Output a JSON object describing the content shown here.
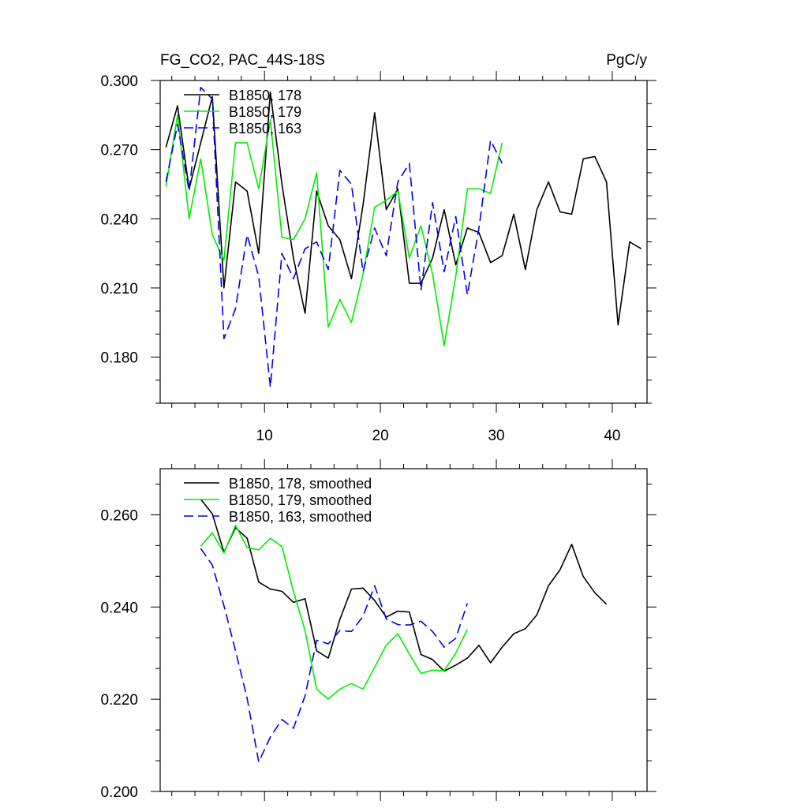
{
  "chart_data": [
    {
      "type": "line",
      "title": "FG_CO2, PAC_44S-18S",
      "units": "PgC/y",
      "xlim": [
        1,
        43
      ],
      "ylim": [
        0.16,
        0.3
      ],
      "xticks": [
        10,
        20,
        30,
        40
      ],
      "yticks": [
        0.18,
        0.21,
        0.24,
        0.27,
        0.3
      ],
      "ytick_labels": [
        "0.180",
        "0.210",
        "0.240",
        "0.270",
        "0.300"
      ],
      "legend_position": "top-left",
      "series": [
        {
          "name": "B1850, 178",
          "color": "#000000",
          "dash": "solid",
          "x": [
            1.5,
            2.5,
            3.5,
            4.5,
            5.5,
            6.5,
            7.5,
            8.5,
            9.5,
            10.5,
            11.5,
            12.5,
            13.5,
            14.5,
            15.5,
            16.5,
            17.5,
            18.5,
            19.5,
            20.5,
            21.5,
            22.5,
            23.5,
            24.5,
            25.5,
            26.5,
            27.5,
            28.5,
            29.5,
            30.5,
            31.5,
            32.5,
            33.5,
            34.5,
            35.5,
            36.5,
            37.5,
            38.5,
            39.5,
            40.5,
            41.5,
            42.5
          ],
          "y": [
            0.271,
            0.289,
            0.253,
            0.273,
            0.293,
            0.21,
            0.256,
            0.252,
            0.225,
            0.295,
            0.255,
            0.223,
            0.199,
            0.252,
            0.237,
            0.231,
            0.214,
            0.246,
            0.286,
            0.244,
            0.253,
            0.212,
            0.212,
            0.223,
            0.244,
            0.22,
            0.236,
            0.234,
            0.221,
            0.224,
            0.242,
            0.218,
            0.244,
            0.256,
            0.243,
            0.242,
            0.266,
            0.267,
            0.256,
            0.194,
            0.23,
            0.227
          ]
        },
        {
          "name": "B1850, 179",
          "color": "#00ee00",
          "dash": "solid",
          "x": [
            1.5,
            2.5,
            3.5,
            4.5,
            5.5,
            6.5,
            7.5,
            8.5,
            9.5,
            10.5,
            11.5,
            12.5,
            13.5,
            14.5,
            15.5,
            16.5,
            17.5,
            18.5,
            19.5,
            20.5,
            21.5,
            22.5,
            23.5,
            24.5,
            25.5,
            26.5,
            27.5,
            28.5,
            29.5,
            30.5
          ],
          "y": [
            0.254,
            0.285,
            0.24,
            0.266,
            0.233,
            0.222,
            0.273,
            0.273,
            0.253,
            0.283,
            0.232,
            0.231,
            0.24,
            0.26,
            0.193,
            0.205,
            0.195,
            0.216,
            0.245,
            0.248,
            0.252,
            0.223,
            0.237,
            0.216,
            0.185,
            0.215,
            0.253,
            0.253,
            0.251,
            0.273
          ]
        },
        {
          "name": "B1850, 163",
          "color": "#0000ee",
          "dash": "dashed",
          "x": [
            1.5,
            2.5,
            3.5,
            4.5,
            5.5,
            6.5,
            7.5,
            8.5,
            9.5,
            10.5,
            11.5,
            12.5,
            13.5,
            14.5,
            15.5,
            16.5,
            17.5,
            18.5,
            19.5,
            20.5,
            21.5,
            22.5,
            23.5,
            24.5,
            25.5,
            26.5,
            27.5,
            28.5,
            29.5,
            30.5
          ],
          "y": [
            0.256,
            0.281,
            0.252,
            0.297,
            0.292,
            0.188,
            0.201,
            0.233,
            0.215,
            0.167,
            0.225,
            0.214,
            0.227,
            0.23,
            0.218,
            0.261,
            0.255,
            0.217,
            0.236,
            0.224,
            0.256,
            0.264,
            0.209,
            0.247,
            0.217,
            0.241,
            0.207,
            0.236,
            0.274,
            0.264
          ]
        }
      ]
    },
    {
      "type": "line",
      "xlim": [
        1,
        43
      ],
      "ylim": [
        0.2,
        0.27
      ],
      "xticks": [
        10,
        20,
        30,
        40
      ],
      "yticks": [
        0.2,
        0.22,
        0.24,
        0.26
      ],
      "ytick_labels": [
        "0.200",
        "0.220",
        "0.240",
        "0.260"
      ],
      "legend_position": "top-left",
      "series": [
        {
          "name": "B1850, 178, smoothed",
          "color": "#000000",
          "dash": "solid",
          "x": [
            4.5,
            5.5,
            6.5,
            7.5,
            8.5,
            9.5,
            10.5,
            11.5,
            12.5,
            13.5,
            14.5,
            15.5,
            16.5,
            17.5,
            18.5,
            19.5,
            20.5,
            21.5,
            22.5,
            23.5,
            24.5,
            25.5,
            26.5,
            27.5,
            28.5,
            29.5,
            30.5,
            31.5,
            32.5,
            33.5,
            34.5,
            35.5,
            36.5,
            37.5,
            38.5,
            39.5
          ],
          "y": [
            0.2634,
            0.2602,
            0.2519,
            0.2572,
            0.2549,
            0.2454,
            0.2439,
            0.2434,
            0.241,
            0.2418,
            0.2305,
            0.2289,
            0.2373,
            0.2439,
            0.2441,
            0.2414,
            0.2378,
            0.2391,
            0.2389,
            0.2297,
            0.2286,
            0.2261,
            0.2274,
            0.2289,
            0.2317,
            0.2279,
            0.2313,
            0.2342,
            0.2353,
            0.2383,
            0.2446,
            0.2481,
            0.2536,
            0.2466,
            0.2431,
            0.2406
          ]
        },
        {
          "name": "B1850, 179, smoothed",
          "color": "#00ee00",
          "dash": "solid",
          "x": [
            4.5,
            5.5,
            6.5,
            7.5,
            8.5,
            9.5,
            10.5,
            11.5,
            12.5,
            13.5,
            14.5,
            15.5,
            16.5,
            17.5,
            18.5,
            19.5,
            20.5,
            21.5,
            22.5,
            23.5,
            24.5,
            25.5,
            26.5,
            27.5
          ],
          "y": [
            0.2532,
            0.2561,
            0.2517,
            0.2577,
            0.2529,
            0.2524,
            0.2549,
            0.2531,
            0.2434,
            0.2349,
            0.2222,
            0.22,
            0.2222,
            0.2234,
            0.2222,
            0.2269,
            0.2317,
            0.2342,
            0.2298,
            0.2256,
            0.2263,
            0.2262,
            0.23,
            0.2351
          ]
        },
        {
          "name": "B1850, 163, smoothed",
          "color": "#0000ee",
          "dash": "dashed",
          "x": [
            4.5,
            5.5,
            6.5,
            7.5,
            8.5,
            9.5,
            10.5,
            11.5,
            12.5,
            13.5,
            14.5,
            15.5,
            16.5,
            17.5,
            18.5,
            19.5,
            20.5,
            21.5,
            22.5,
            23.5,
            24.5,
            25.5,
            26.5,
            27.5
          ],
          "y": [
            0.2527,
            0.2491,
            0.2403,
            0.2305,
            0.2202,
            0.2064,
            0.2118,
            0.2156,
            0.2137,
            0.2207,
            0.2328,
            0.232,
            0.2349,
            0.2347,
            0.238,
            0.2446,
            0.2374,
            0.2362,
            0.2361,
            0.2369,
            0.2347,
            0.2313,
            0.2332,
            0.2408
          ]
        }
      ]
    }
  ]
}
